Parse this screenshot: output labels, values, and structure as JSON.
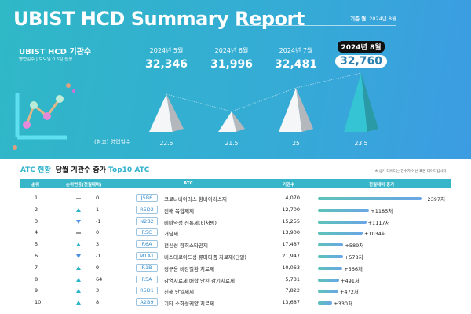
{
  "header": {
    "title": "UBIST HCD Summary Report",
    "basis_label": "기준 월",
    "basis_value": "2024년 8월"
  },
  "summary": {
    "title": "UBIST HCD 기관수",
    "subtitle": "영업일수 | 토요일 0.5일 산정",
    "days_label": "(참고) 영업일수",
    "months": [
      {
        "label": "2024년 5월",
        "value": "32,346",
        "days": "22.5"
      },
      {
        "label": "2024년 6월",
        "value": "31,996",
        "days": "21.5"
      },
      {
        "label": "2024년 7월",
        "value": "32,481",
        "days": "25"
      },
      {
        "label": "2024년 8월",
        "value": "32,760",
        "days": "23.5",
        "current": true
      }
    ]
  },
  "atc": {
    "section": "ATC 현황",
    "subtitle": "당월 기관수 증가",
    "subtitle_accent": "Top10 ATC",
    "note": "※ 상기 데이터는 전수가 아닌 표본 데이터입니다.",
    "columns": [
      "순위",
      "순위변동(전월대비)",
      "ATC",
      "기관수",
      "전월대비 증가"
    ],
    "rows": [
      {
        "rank": "1",
        "trend": "same",
        "change": "0",
        "code": "J5B6",
        "name": "코로나바이러스 항바이러스제",
        "count": "4,070",
        "increase": 2397,
        "increase_label": "+2397처"
      },
      {
        "rank": "2",
        "trend": "up",
        "change": "1",
        "code": "R5D2",
        "name": "진해 복합제제",
        "count": "12,700",
        "increase": 1185,
        "increase_label": "+1185처"
      },
      {
        "rank": "3",
        "trend": "down",
        "change": "-1",
        "code": "N2B2",
        "name": "비마약성 진통제(비처방)",
        "count": "15,255",
        "increase": 1117,
        "increase_label": "+1117처"
      },
      {
        "rank": "4",
        "trend": "same",
        "change": "0",
        "code": "R5C",
        "name": "거담제",
        "count": "13,900",
        "increase": 1034,
        "increase_label": "+1034처"
      },
      {
        "rank": "5",
        "trend": "up",
        "change": "3",
        "code": "R6A",
        "name": "전신성 항히스타민제",
        "count": "17,487",
        "increase": 589,
        "increase_label": "+589처"
      },
      {
        "rank": "6",
        "trend": "down",
        "change": "-1",
        "code": "M1A1",
        "name": "비스테로이드성 류마티즘 치료제(단일)",
        "count": "21,947",
        "increase": 578,
        "increase_label": "+578처"
      },
      {
        "rank": "7",
        "trend": "up",
        "change": "9",
        "code": "R1B",
        "name": "경구용 비강질환 치료제",
        "count": "10,063",
        "increase": 566,
        "increase_label": "+566처"
      },
      {
        "rank": "8",
        "trend": "up",
        "change": "64",
        "code": "R5A",
        "name": "감염치료제 배합 안된 감기치료제",
        "count": "5,731",
        "increase": 491,
        "increase_label": "+491처"
      },
      {
        "rank": "9",
        "trend": "up",
        "change": "3",
        "code": "R5D1",
        "name": "진해 단일제제",
        "count": "7,822",
        "increase": 472,
        "increase_label": "+472처"
      },
      {
        "rank": "10",
        "trend": "up",
        "change": "8",
        "code": "A2B9",
        "name": "기타 소화성궤양 치료제",
        "count": "13,687",
        "increase": 330,
        "increase_label": "+330처"
      }
    ]
  },
  "colors": {
    "accent": "#36b6c8",
    "bar_start": "#5cc3b8",
    "bar_end": "#6aa6e6",
    "current_pyramid": "#35c4d4"
  }
}
